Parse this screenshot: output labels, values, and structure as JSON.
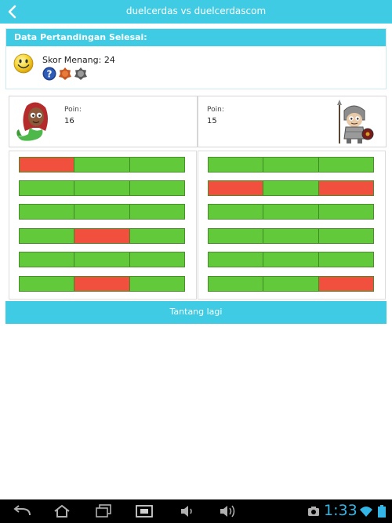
{
  "header": {
    "title": "duelcerdas vs duelcerdascom",
    "back_icon": "chevron-left-icon"
  },
  "result": {
    "heading": "Data Pertandingan Selesai:",
    "score_label": "Skor Menang: 24",
    "badges": [
      "question-badge-icon",
      "bronze-badge-icon",
      "silver-badge-icon"
    ]
  },
  "players": {
    "left": {
      "poin_label": "Poin:",
      "poin_value": "16",
      "avatar": "mermaid-avatar"
    },
    "right": {
      "poin_label": "Poin:",
      "poin_value": "15",
      "avatar": "knight-avatar"
    }
  },
  "rounds": {
    "left": [
      [
        "bad",
        "ok",
        "ok"
      ],
      [
        "ok",
        "ok",
        "ok"
      ],
      [
        "ok",
        "ok",
        "ok"
      ],
      [
        "ok",
        "bad",
        "ok"
      ],
      [
        "ok",
        "ok",
        "ok"
      ],
      [
        "ok",
        "bad",
        "ok"
      ]
    ],
    "right": [
      [
        "ok",
        "ok",
        "ok"
      ],
      [
        "bad",
        "ok",
        "bad"
      ],
      [
        "ok",
        "ok",
        "ok"
      ],
      [
        "ok",
        "ok",
        "ok"
      ],
      [
        "ok",
        "ok",
        "ok"
      ],
      [
        "ok",
        "ok",
        "bad"
      ]
    ]
  },
  "actions": {
    "retry_label": "Tantang lagi"
  },
  "system_bar": {
    "time": "1:33",
    "nav_icons": [
      "back-icon",
      "home-icon",
      "recent-apps-icon",
      "screenshot-icon",
      "volume-down-icon",
      "volume-up-icon"
    ],
    "status_icons": [
      "camera-icon",
      "wifi-icon",
      "battery-icon"
    ]
  },
  "colors": {
    "accent": "#3ecbe3",
    "correct": "#62c93a",
    "wrong": "#f2503e",
    "clock": "#33b5e5"
  }
}
